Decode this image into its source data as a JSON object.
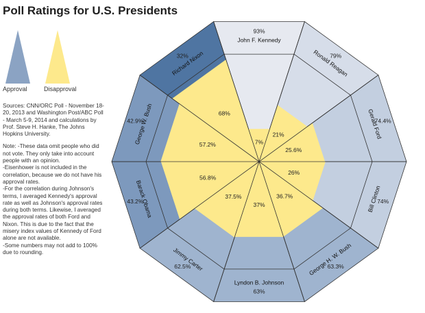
{
  "title": "Poll Ratings for U.S. Presidents",
  "legend": {
    "approval_label": "Approval",
    "disapproval_label": "Disapproval",
    "approval_color": "#8ba3c3",
    "disapproval_color": "#fde98c"
  },
  "sources": "Sources: CNN/ORC Poll - November 18-20, 2013 and Washington Post/ABC Poll - March 5-9, 2014 and calculations by Prof. Steve H. Hanke, The Johns Hopkins University.",
  "notes": [
    "Note: -These data omit people who did not vote. They only take into account people with an opinion.",
    "-Eisenhower is not included in the correlation, because we do not have his approval rates.",
    "-For the correlation during Johnson's terms, I averaged Kennedy's approval rate as well as Johnson's approval rates during both terms. Likewise, I averaged the approval rates of both Ford and Nixon. This is due to the fact that the misery index values of Kennedy of Ford alone are not available.",
    "-Some numbers may not add to 100% due to rounding."
  ],
  "chart_data": {
    "type": "radial-bar",
    "title": "Poll Ratings for U.S. Presidents",
    "series_names": [
      "Approval",
      "Disapproval"
    ],
    "presidents": [
      {
        "name": "John F. Kennedy",
        "approval": 93,
        "approval_label": "93%",
        "disapproval": 7,
        "disapproval_label": "7%",
        "approval_color": "#e6e9f0"
      },
      {
        "name": "Ronald Reagan",
        "approval": 79,
        "approval_label": "79%",
        "disapproval": 21,
        "disapproval_label": "21%",
        "approval_color": "#d6dde9"
      },
      {
        "name": "Gerald Ford",
        "approval": 74.4,
        "approval_label": "74.4%",
        "disapproval": 25.6,
        "disapproval_label": "25.6%",
        "approval_color": "#c3cfe0"
      },
      {
        "name": "Bill Clinton",
        "approval": 74,
        "approval_label": "74%",
        "disapproval": 26,
        "disapproval_label": "26%",
        "approval_color": "#c3cfe0"
      },
      {
        "name": "George H. W. Bush",
        "approval": 63.3,
        "approval_label": "63.3%",
        "disapproval": 36.7,
        "disapproval_label": "36.7%",
        "approval_color": "#9fb4cf"
      },
      {
        "name": "Lyndon B. Johnson",
        "approval": 63,
        "approval_label": "63%",
        "disapproval": 37,
        "disapproval_label": "37%",
        "approval_color": "#9fb4cf"
      },
      {
        "name": "Jimmy Carter",
        "approval": 62.5,
        "approval_label": "62.5%",
        "disapproval": 37.5,
        "disapproval_label": "37.5%",
        "approval_color": "#9fb4cf"
      },
      {
        "name": "Barack Obama",
        "approval": 43.2,
        "approval_label": "43.2%",
        "disapproval": 56.8,
        "disapproval_label": "56.8%",
        "approval_color": "#7d99bd"
      },
      {
        "name": "George W. Bush",
        "approval": 42.9,
        "approval_label": "42.9%",
        "disapproval": 57.2,
        "disapproval_label": "57.2%",
        "approval_color": "#7d99bd"
      },
      {
        "name": "Richard Nixon",
        "approval": 32,
        "approval_label": "32%",
        "disapproval": 68,
        "disapproval_label": "68%",
        "approval_color": "#4f75a2"
      }
    ]
  }
}
